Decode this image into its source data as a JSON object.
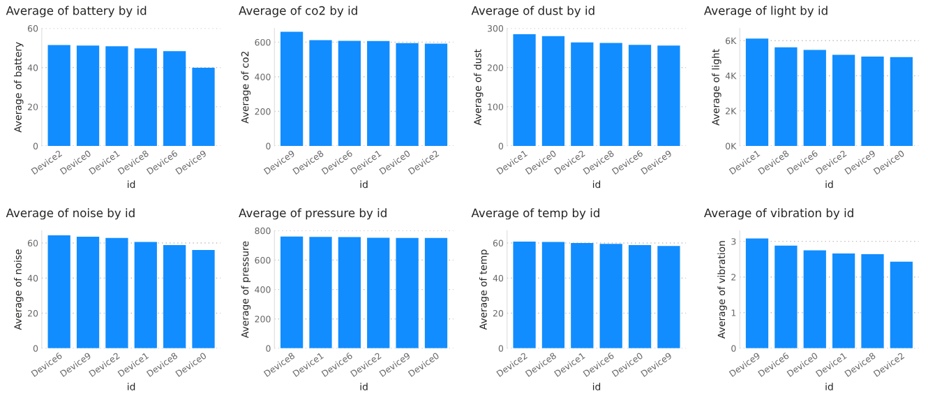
{
  "chart_data": [
    {
      "type": "bar",
      "title": "Average of battery by id",
      "xlabel": "id",
      "ylabel": "Average of battery",
      "categories": [
        "Device2",
        "Device0",
        "Device1",
        "Device8",
        "Device6",
        "Device9"
      ],
      "values": [
        51.5,
        51.2,
        50.9,
        49.8,
        48.4,
        39.9
      ],
      "color": "#118dff",
      "ylim": [
        0,
        60
      ],
      "yticks": [
        0,
        20,
        40,
        60
      ],
      "grid": "y"
    },
    {
      "type": "bar",
      "title": "Average of co2 by id",
      "xlabel": "id",
      "ylabel": "Average of co2",
      "categories": [
        "Device9",
        "Device8",
        "Device6",
        "Device1",
        "Device0",
        "Device2"
      ],
      "values": [
        660,
        612,
        608,
        607,
        595,
        592
      ],
      "color": "#118dff",
      "ylim": [
        0,
        680
      ],
      "yticks": [
        0,
        200,
        400,
        600
      ],
      "grid": "y"
    },
    {
      "type": "bar",
      "title": "Average of dust by id",
      "xlabel": "id",
      "ylabel": "Average of dust",
      "categories": [
        "Device1",
        "Device0",
        "Device2",
        "Device8",
        "Device6",
        "Device9"
      ],
      "values": [
        285,
        280,
        264,
        263,
        258,
        256
      ],
      "color": "#118dff",
      "ylim": [
        0,
        300
      ],
      "yticks": [
        0,
        100,
        200,
        300
      ],
      "grid": "y"
    },
    {
      "type": "bar",
      "title": "Average of light by id",
      "xlabel": "id",
      "ylabel": "Average of light",
      "categories": [
        "Device1",
        "Device8",
        "Device6",
        "Device2",
        "Device9",
        "Device0"
      ],
      "values": [
        6120,
        5620,
        5470,
        5190,
        5090,
        5060
      ],
      "color": "#118dff",
      "ylim": [
        0,
        6700
      ],
      "yticks": [
        {
          "value": 0,
          "label": "0K"
        },
        {
          "value": 2000,
          "label": "2K"
        },
        {
          "value": 4000,
          "label": "4K"
        },
        {
          "value": 6000,
          "label": "6K"
        }
      ],
      "grid": "y"
    },
    {
      "type": "bar",
      "title": "Average of noise by id",
      "xlabel": "id",
      "ylabel": "Average of noise",
      "categories": [
        "Device6",
        "Device9",
        "Device2",
        "Device1",
        "Device8",
        "Device0"
      ],
      "values": [
        64.4,
        63.6,
        62.9,
        60.6,
        58.8,
        56.0
      ],
      "color": "#118dff",
      "ylim": [
        0,
        67
      ],
      "yticks": [
        0,
        20,
        40,
        60
      ],
      "grid": "y"
    },
    {
      "type": "bar",
      "title": "Average of pressure by id",
      "xlabel": "id",
      "ylabel": "Average of pressure",
      "categories": [
        "Device8",
        "Device1",
        "Device6",
        "Device2",
        "Device9",
        "Device0"
      ],
      "values": [
        760,
        758,
        756,
        752,
        751,
        750
      ],
      "color": "#118dff",
      "ylim": [
        0,
        800
      ],
      "yticks": [
        0,
        200,
        400,
        600,
        800
      ],
      "grid": "y"
    },
    {
      "type": "bar",
      "title": "Average of temp by id",
      "xlabel": "id",
      "ylabel": "Average of temp",
      "categories": [
        "Device2",
        "Device8",
        "Device1",
        "Device6",
        "Device0",
        "Device9"
      ],
      "values": [
        60.8,
        60.6,
        60.0,
        59.5,
        58.8,
        58.3
      ],
      "color": "#118dff",
      "ylim": [
        0,
        67
      ],
      "yticks": [
        0,
        20,
        40,
        60
      ],
      "grid": "y"
    },
    {
      "type": "bar",
      "title": "Average of vibration by id",
      "xlabel": "id",
      "ylabel": "Average of vibration",
      "categories": [
        "Device9",
        "Device6",
        "Device0",
        "Device1",
        "Device8",
        "Device2"
      ],
      "values": [
        3.08,
        2.88,
        2.75,
        2.66,
        2.64,
        2.43
      ],
      "color": "#118dff",
      "ylim": [
        0,
        3.3
      ],
      "yticks": [
        0,
        1,
        2,
        3
      ],
      "grid": "y"
    }
  ]
}
